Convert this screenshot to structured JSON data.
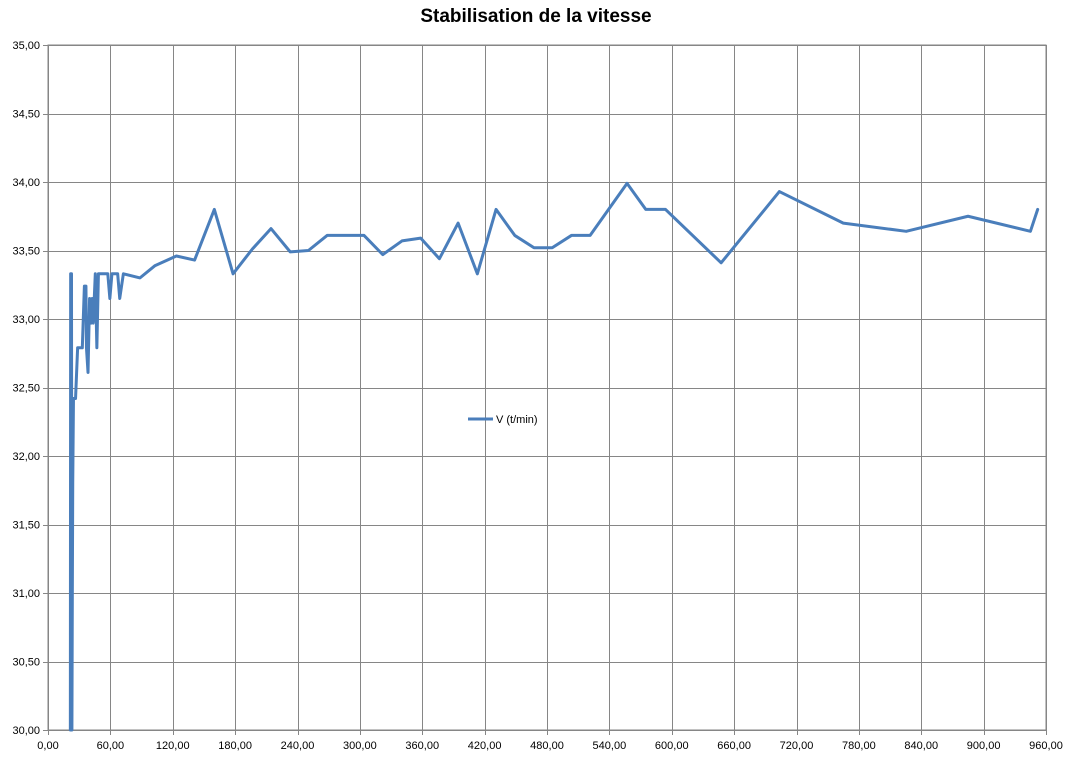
{
  "chart_data": {
    "type": "line",
    "title": "Stabilisation de la vitesse",
    "xlabel": "",
    "ylabel": "",
    "xlim": [
      0,
      960
    ],
    "ylim": [
      30,
      35
    ],
    "grid": true,
    "legend_position": "center",
    "x_ticks": [
      "0,00",
      "60,00",
      "120,00",
      "180,00",
      "240,00",
      "300,00",
      "360,00",
      "420,00",
      "480,00",
      "540,00",
      "600,00",
      "660,00",
      "720,00",
      "780,00",
      "840,00",
      "900,00",
      "960,00"
    ],
    "y_ticks": [
      "30,00",
      "30,50",
      "31,00",
      "31,50",
      "32,00",
      "32,50",
      "33,00",
      "33,50",
      "34,00",
      "34,50",
      "35,00"
    ],
    "series": [
      {
        "name": "V (t/min)",
        "color": "#4a7ebb",
        "x": [
          21.5,
          21.8,
          22.2,
          22.6,
          23.0,
          23.4,
          23.8,
          24.5,
          25.5,
          26.5,
          28.5,
          30.5,
          33.0,
          35.0,
          36.5,
          37.0,
          38.5,
          40.0,
          41.5,
          42.5,
          43.5,
          45.5,
          47.0,
          48.5,
          50.0,
          52.0,
          55.0,
          57.5,
          59.5,
          61.5,
          64.5,
          67.0,
          69.0,
          72.5,
          88.5,
          103.0,
          123.5,
          141.0,
          160.0,
          178.0,
          196.5,
          214.5,
          233.0,
          250.5,
          268.5,
          287.0,
          304.0,
          322.0,
          340.5,
          358.5,
          376.5,
          394.5,
          413.0,
          431.0,
          449.0,
          467.5,
          485.0,
          503.5,
          521.5,
          557.0,
          575.0,
          594.0,
          647.5,
          703.5,
          765.0,
          825.5,
          885.0,
          945.0,
          952.0
        ],
        "values": [
          30.0,
          33.33,
          30.0,
          33.33,
          30.0,
          31.0,
          31.8,
          32.42,
          32.42,
          32.42,
          32.79,
          32.79,
          32.79,
          33.24,
          33.24,
          32.79,
          32.61,
          33.15,
          32.97,
          33.15,
          32.97,
          33.33,
          32.79,
          33.33,
          33.33,
          33.33,
          33.33,
          33.33,
          33.15,
          33.33,
          33.33,
          33.33,
          33.15,
          33.33,
          33.3,
          33.39,
          33.46,
          33.43,
          33.8,
          33.33,
          33.51,
          33.66,
          33.49,
          33.5,
          33.61,
          33.61,
          33.61,
          33.47,
          33.57,
          33.59,
          33.44,
          33.7,
          33.33,
          33.8,
          33.61,
          33.52,
          33.52,
          33.61,
          33.61,
          33.99,
          33.8,
          33.8,
          33.41,
          33.93,
          33.7,
          33.64,
          33.75,
          33.64,
          33.8
        ]
      }
    ]
  }
}
